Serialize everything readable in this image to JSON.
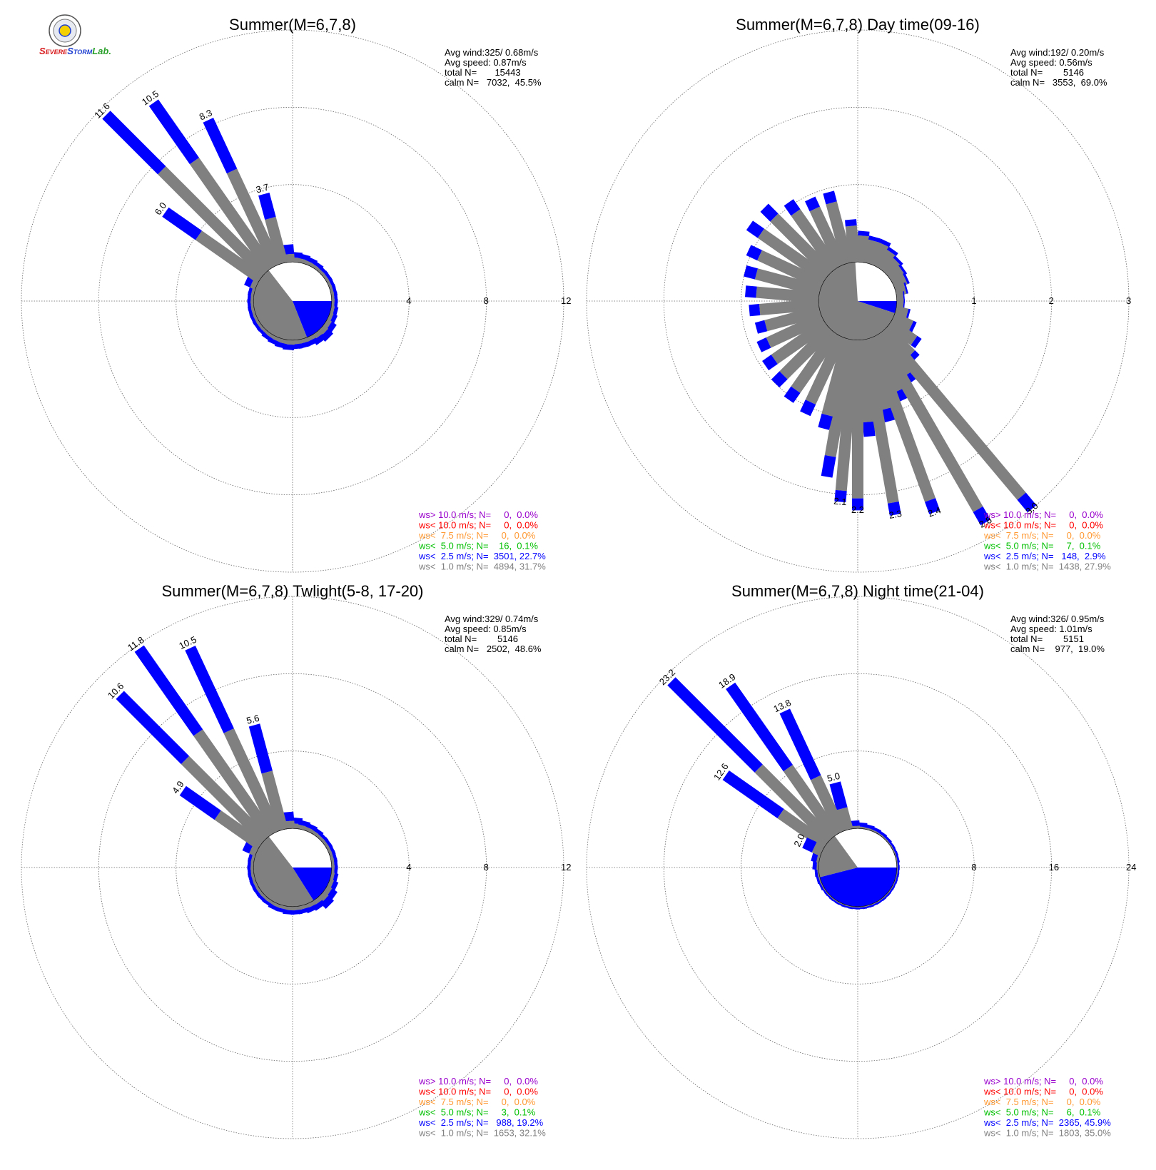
{
  "logo": {
    "text_parts": [
      {
        "text": "S",
        "color": "#d7191c"
      },
      {
        "text": "EVERE",
        "color": "#d7191c"
      },
      {
        "text": "S",
        "color": "#1f3fd0"
      },
      {
        "text": "TORM",
        "color": "#1f3fd0"
      },
      {
        "text": "Lab.",
        "color": "#2ca02c"
      }
    ]
  },
  "colors": {
    "calm_lt1": "#808080",
    "lt2_5": "#0000ff",
    "lt5": "#00c000",
    "lt7_5": "#ff9933",
    "lt10": "#ff0000",
    "gt10": "#9900cc",
    "grid": "#666666"
  },
  "chart_data": [
    {
      "type": "windrose",
      "title": "Summer(M=6,7,8)",
      "stats": [
        "Avg wind:325/ 0.68m/s",
        "Avg speed: 0.87m/s",
        "total N=       15443",
        "calm N=   7032,  45.5%"
      ],
      "rings": [
        4,
        8,
        12
      ],
      "ring_labels": [
        "4",
        "8",
        "12"
      ],
      "rmax": 12,
      "calm_fraction": 0.455,
      "labeled_bars": [
        {
          "dir": 345,
          "value": 3.7,
          "label": "3.7"
        },
        {
          "dir": 335,
          "value": 8.3,
          "label": "8.3"
        },
        {
          "dir": 325,
          "value": 10.5,
          "label": "10.5"
        },
        {
          "dir": 315,
          "value": 11.6,
          "label": "11.6"
        },
        {
          "dir": 305,
          "value": 6.0,
          "label": "6.0"
        }
      ],
      "small_bars_gray_frac": 0.45,
      "legend": [
        {
          "text": "ws> 10.0 m/s; N=     0,  0.0%",
          "class": "gt10"
        },
        {
          "text": "ws< 10.0 m/s; N=     0,  0.0%",
          "class": "lt10"
        },
        {
          "text": "ws<  7.5 m/s; N=     0,  0.0%",
          "class": "lt7_5"
        },
        {
          "text": "ws<  5.0 m/s; N=    16,  0.1%",
          "class": "lt5"
        },
        {
          "text": "ws<  2.5 m/s; N=  3501, 22.7%",
          "class": "lt2_5"
        },
        {
          "text": "ws<  1.0 m/s; N=  4894, 31.7%",
          "class": "calm_lt1"
        }
      ]
    },
    {
      "type": "windrose",
      "title": "Summer(M=6,7,8) Day time(09-16)",
      "stats": [
        "Avg wind:192/ 0.20m/s",
        "Avg speed: 0.56m/s",
        "total N=        5146",
        "calm N=   3553,  69.0%"
      ],
      "rings": [
        1,
        2,
        3
      ],
      "ring_labels": [
        "1",
        "2",
        "3"
      ],
      "rmax": 3,
      "calm_fraction": 0.69,
      "labeled_bars": [
        {
          "dir": 185,
          "value": 2.1,
          "label": "2.1"
        },
        {
          "dir": 180,
          "value": 2.2,
          "label": "2.2"
        },
        {
          "dir": 170,
          "value": 2.3,
          "label": "2.3"
        },
        {
          "dir": 160,
          "value": 2.4,
          "label": "2.4"
        },
        {
          "dir": 150,
          "value": 2.8,
          "label": "2.8"
        },
        {
          "dir": 140,
          "value": 3.0,
          "label": "3.0"
        }
      ],
      "small_bars_gray_frac": 0.85,
      "legend": [
        {
          "text": "ws> 10.0 m/s; N=     0,  0.0%",
          "class": "gt10"
        },
        {
          "text": "ws< 10.0 m/s; N=     0,  0.0%",
          "class": "lt10"
        },
        {
          "text": "ws<  7.5 m/s; N=     0,  0.0%",
          "class": "lt7_5"
        },
        {
          "text": "ws<  5.0 m/s; N=     7,  0.1%",
          "class": "lt5"
        },
        {
          "text": "ws<  2.5 m/s; N=   148,  2.9%",
          "class": "lt2_5"
        },
        {
          "text": "ws<  1.0 m/s; N=  1438, 27.9%",
          "class": "calm_lt1"
        }
      ]
    },
    {
      "type": "windrose",
      "title": "Summer(M=6,7,8) Twlight(5-8, 17-20)",
      "stats": [
        "Avg wind:329/ 0.74m/s",
        "Avg speed: 0.85m/s",
        "total N=        5146",
        "calm N=   2502,  48.6%"
      ],
      "rings": [
        4,
        8,
        12
      ],
      "ring_labels": [
        "4",
        "8",
        "12"
      ],
      "rmax": 12,
      "calm_fraction": 0.486,
      "labeled_bars": [
        {
          "dir": 345,
          "value": 5.6,
          "label": "5.6"
        },
        {
          "dir": 335,
          "value": 10.5,
          "label": "10.5"
        },
        {
          "dir": 325,
          "value": 11.8,
          "label": "11.8"
        },
        {
          "dir": 315,
          "value": 10.6,
          "label": "10.6"
        },
        {
          "dir": 305,
          "value": 4.9,
          "label": "4.9"
        }
      ],
      "small_bars_gray_frac": 0.45,
      "legend": [
        {
          "text": "ws> 10.0 m/s; N=     0,  0.0%",
          "class": "gt10"
        },
        {
          "text": "ws< 10.0 m/s; N=     0,  0.0%",
          "class": "lt10"
        },
        {
          "text": "ws<  7.5 m/s; N=     0,  0.0%",
          "class": "lt7_5"
        },
        {
          "text": "ws<  5.0 m/s; N=     3,  0.1%",
          "class": "lt5"
        },
        {
          "text": "ws<  2.5 m/s; N=   988, 19.2%",
          "class": "lt2_5"
        },
        {
          "text": "ws<  1.0 m/s; N=  1653, 32.1%",
          "class": "calm_lt1"
        }
      ]
    },
    {
      "type": "windrose",
      "title": "Summer(M=6,7,8) Night time(21-04)",
      "stats": [
        "Avg wind:326/ 0.95m/s",
        "Avg speed: 1.01m/s",
        "total N=        5151",
        "calm N=    977,  19.0%"
      ],
      "rings": [
        8,
        16,
        24
      ],
      "ring_labels": [
        "8",
        "16",
        "24"
      ],
      "rmax": 24,
      "calm_fraction": 0.19,
      "labeled_bars": [
        {
          "dir": 345,
          "value": 5.0,
          "label": "5.0"
        },
        {
          "dir": 335,
          "value": 13.8,
          "label": "13.8"
        },
        {
          "dir": 325,
          "value": 18.9,
          "label": "18.9"
        },
        {
          "dir": 315,
          "value": 23.2,
          "label": "23.2"
        },
        {
          "dir": 305,
          "value": 12.6,
          "label": "12.6"
        },
        {
          "dir": 295,
          "value": 2.0,
          "label": "2.0"
        }
      ],
      "small_bars_gray_frac": 0.3,
      "legend": [
        {
          "text": "ws> 10.0 m/s; N=     0,  0.0%",
          "class": "gt10"
        },
        {
          "text": "ws< 10.0 m/s; N=     0,  0.0%",
          "class": "lt10"
        },
        {
          "text": "ws<  7.5 m/s; N=     0,  0.0%",
          "class": "lt7_5"
        },
        {
          "text": "ws<  5.0 m/s; N=     6,  0.1%",
          "class": "lt5"
        },
        {
          "text": "ws<  2.5 m/s; N=  2365, 45.9%",
          "class": "lt2_5"
        },
        {
          "text": "ws<  1.0 m/s; N=  1803, 35.0%",
          "class": "calm_lt1"
        }
      ]
    }
  ]
}
